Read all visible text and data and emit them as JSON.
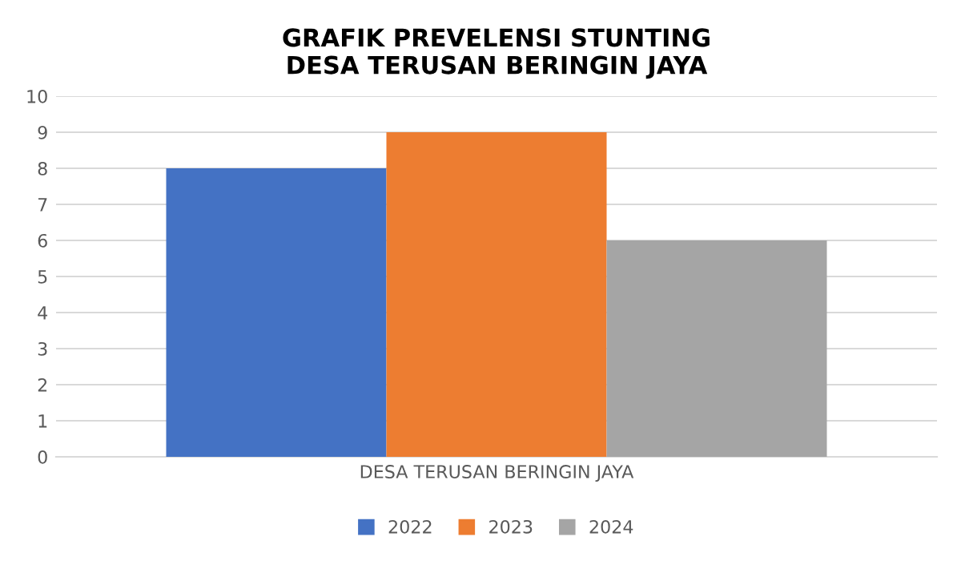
{
  "chart_data": {
    "type": "bar",
    "title": "GRAFIK PREVELENSI STUNTING\nDESA TERUSAN BERINGIN JAYA",
    "categories": [
      "DESA TERUSAN BERINGIN JAYA"
    ],
    "series": [
      {
        "name": "2022",
        "color": "#4472c4",
        "values": [
          8
        ]
      },
      {
        "name": "2023",
        "color": "#ed7d31",
        "values": [
          9
        ]
      },
      {
        "name": "2024",
        "color": "#a5a5a5",
        "values": [
          6
        ]
      }
    ],
    "ylim": [
      0,
      10
    ],
    "yticks": [
      0,
      1,
      2,
      3,
      4,
      5,
      6,
      7,
      8,
      9,
      10
    ],
    "grid": "y",
    "legend": "bottom"
  }
}
